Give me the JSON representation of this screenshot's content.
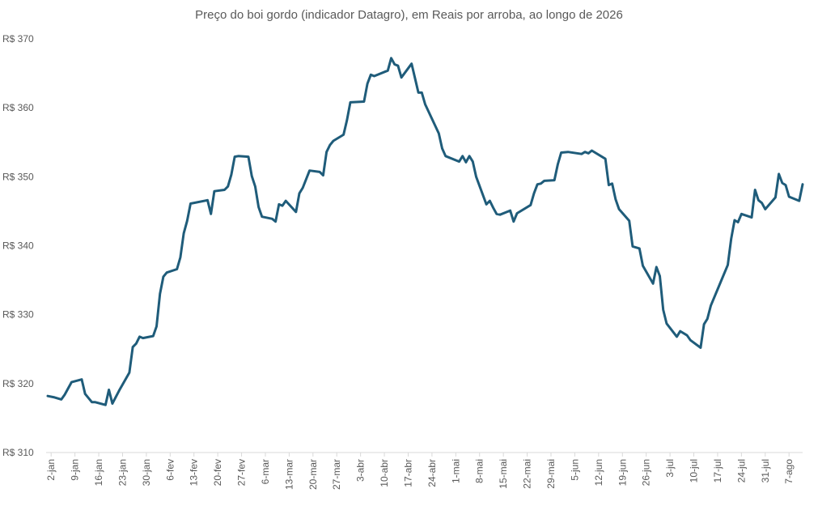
{
  "chart_data": {
    "type": "line",
    "title": "Preço do boi gordo (indicador Datagro), em Reais por arroba, ao longo de 2026",
    "xlabel": "",
    "ylabel": "",
    "ylim": [
      310,
      370
    ],
    "y_ticks": [
      310,
      320,
      330,
      340,
      350,
      360,
      370
    ],
    "y_tick_prefix": "R$ ",
    "grid": false,
    "legend": "none",
    "line_color": "#1f5c7a",
    "x_ticks": [
      "2-jan",
      "9-jan",
      "16-jan",
      "23-jan",
      "30-jan",
      "6-fev",
      "13-fev",
      "20-fev",
      "27-fev",
      "6-mar",
      "13-mar",
      "20-mar",
      "27-mar",
      "3-abr",
      "10-abr",
      "17-abr",
      "24-abr",
      "1-mai",
      "8-mai",
      "15-mai",
      "22-mai",
      "29-mai",
      "5-jun",
      "12-jun",
      "19-jun",
      "26-jun",
      "3-jul",
      "10-jul",
      "17-jul",
      "24-jul",
      "31-jul",
      "7-ago"
    ],
    "x_tick_days": [
      1,
      8,
      15,
      22,
      29,
      36,
      43,
      50,
      57,
      64,
      71,
      78,
      85,
      92,
      99,
      106,
      113,
      120,
      127,
      134,
      141,
      148,
      155,
      162,
      169,
      176,
      183,
      190,
      197,
      204,
      211,
      218
    ],
    "series": [
      {
        "values": [
          [
            0,
            318.2
          ],
          [
            2,
            318
          ],
          [
            4,
            317.7
          ],
          [
            5,
            318.4
          ],
          [
            7,
            320.2
          ],
          [
            10,
            320.6
          ],
          [
            11,
            318.5
          ],
          [
            13,
            317.3
          ],
          [
            14,
            317.3
          ],
          [
            17,
            316.9
          ],
          [
            18,
            319.1
          ],
          [
            19,
            317.1
          ],
          [
            21,
            319
          ],
          [
            24,
            321.6
          ],
          [
            25,
            325.3
          ],
          [
            26,
            325.8
          ],
          [
            27,
            326.8
          ],
          [
            28,
            326.6
          ],
          [
            31,
            326.9
          ],
          [
            32,
            328.3
          ],
          [
            33,
            333
          ],
          [
            34,
            335.5
          ],
          [
            35,
            336.1
          ],
          [
            38,
            336.6
          ],
          [
            39,
            338.3
          ],
          [
            40,
            341.8
          ],
          [
            41,
            343.6
          ],
          [
            42,
            346.1
          ],
          [
            47,
            346.6
          ],
          [
            48,
            344.6
          ],
          [
            49,
            347.9
          ],
          [
            52,
            348.1
          ],
          [
            53,
            348.6
          ],
          [
            54,
            350.3
          ],
          [
            55,
            352.9
          ],
          [
            56,
            353
          ],
          [
            59,
            352.9
          ],
          [
            60,
            350.1
          ],
          [
            61,
            348.6
          ],
          [
            62,
            345.6
          ],
          [
            63,
            344.2
          ],
          [
            66,
            343.9
          ],
          [
            67,
            343.5
          ],
          [
            68,
            346
          ],
          [
            69,
            345.8
          ],
          [
            70,
            346.5
          ],
          [
            73,
            344.9
          ],
          [
            74,
            347.6
          ],
          [
            75,
            348.4
          ],
          [
            77,
            350.9
          ],
          [
            80,
            350.7
          ],
          [
            81,
            350.2
          ],
          [
            82,
            353.6
          ],
          [
            83,
            354.6
          ],
          [
            84,
            355.2
          ],
          [
            87,
            356.1
          ],
          [
            88,
            358.2
          ],
          [
            89,
            360.8
          ],
          [
            93,
            360.9
          ],
          [
            94,
            363.5
          ],
          [
            95,
            364.8
          ],
          [
            96,
            364.6
          ],
          [
            100,
            365.4
          ],
          [
            101,
            367.2
          ],
          [
            102,
            366.3
          ],
          [
            103,
            366.1
          ],
          [
            104,
            364.4
          ],
          [
            107,
            366.4
          ],
          [
            108,
            364.3
          ],
          [
            109,
            362.2
          ],
          [
            110,
            362.2
          ],
          [
            111,
            360.5
          ],
          [
            115,
            356.3
          ],
          [
            116,
            354.1
          ],
          [
            117,
            353
          ],
          [
            121,
            352.2
          ],
          [
            122,
            353
          ],
          [
            123,
            352.1
          ],
          [
            124,
            353
          ],
          [
            125,
            352.2
          ],
          [
            126,
            350
          ],
          [
            129,
            346
          ],
          [
            130,
            346.5
          ],
          [
            131,
            345.5
          ],
          [
            132,
            344.6
          ],
          [
            133,
            344.5
          ],
          [
            136,
            345.1
          ],
          [
            137,
            343.5
          ],
          [
            138,
            344.7
          ],
          [
            142,
            345.9
          ],
          [
            143,
            347.6
          ],
          [
            144,
            348.9
          ],
          [
            145,
            349
          ],
          [
            146,
            349.4
          ],
          [
            149,
            349.5
          ],
          [
            150,
            351.8
          ],
          [
            151,
            353.5
          ],
          [
            153,
            353.6
          ],
          [
            157,
            353.3
          ],
          [
            158,
            353.6
          ],
          [
            159,
            353.4
          ],
          [
            160,
            353.8
          ],
          [
            164,
            352.6
          ],
          [
            165,
            348.8
          ],
          [
            166,
            349
          ],
          [
            167,
            346.7
          ],
          [
            168,
            345.3
          ],
          [
            171,
            343.6
          ],
          [
            172,
            339.9
          ],
          [
            174,
            339.6
          ],
          [
            175,
            337.1
          ],
          [
            178,
            334.5
          ],
          [
            179,
            336.9
          ],
          [
            180,
            335.6
          ],
          [
            181,
            330.7
          ],
          [
            182,
            328.7
          ],
          [
            185,
            326.8
          ],
          [
            186,
            327.6
          ],
          [
            188,
            327
          ],
          [
            189,
            326.3
          ],
          [
            192,
            325.2
          ],
          [
            193,
            328.6
          ],
          [
            194,
            329.4
          ],
          [
            195,
            331.3
          ],
          [
            200,
            337.2
          ],
          [
            201,
            341
          ],
          [
            202,
            343.7
          ],
          [
            203,
            343.4
          ],
          [
            204,
            344.6
          ],
          [
            207,
            344.1
          ],
          [
            208,
            348.1
          ],
          [
            209,
            346.6
          ],
          [
            210,
            346.2
          ],
          [
            211,
            345.3
          ],
          [
            214,
            347
          ],
          [
            215,
            350.4
          ],
          [
            216,
            349.1
          ],
          [
            217,
            348.8
          ],
          [
            218,
            347.1
          ],
          [
            221,
            346.5
          ],
          [
            222,
            348.9
          ]
        ]
      }
    ]
  }
}
